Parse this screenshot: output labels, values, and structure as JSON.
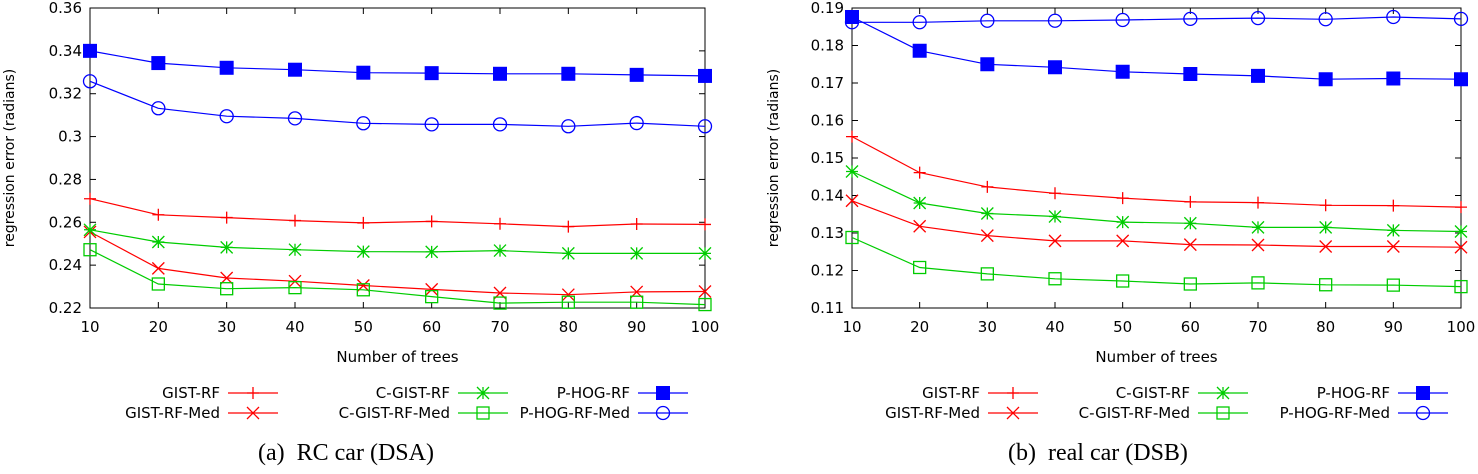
{
  "chart_data": [
    {
      "type": "line",
      "caption": "(a)  RC car (DSA)",
      "xlabel": "Number of trees",
      "ylabel": "regression error (radians)",
      "xlim": [
        10,
        100
      ],
      "ylim": [
        0.22,
        0.36
      ],
      "x": [
        10,
        20,
        30,
        40,
        50,
        60,
        70,
        80,
        90,
        100
      ],
      "xticks": [
        "10",
        "20",
        "30",
        "40",
        "50",
        "60",
        "70",
        "80",
        "90",
        "100"
      ],
      "yticks": [
        "0.22",
        "0.24",
        "0.26",
        "0.28",
        "0.3",
        "0.32",
        "0.34",
        "0.36"
      ],
      "ytick_values": [
        0.22,
        0.24,
        0.26,
        0.28,
        0.3,
        0.32,
        0.34,
        0.36
      ],
      "grid": false,
      "legend_position": "below",
      "series": [
        {
          "name": "GIST-RF",
          "color": "#ff0000",
          "marker": "plus",
          "values": [
            0.271,
            0.2635,
            0.2622,
            0.2608,
            0.2597,
            0.2604,
            0.2593,
            0.258,
            0.2592,
            0.259
          ]
        },
        {
          "name": "GIST-RF-Med",
          "color": "#ff0000",
          "marker": "x",
          "values": [
            0.2555,
            0.2385,
            0.234,
            0.2325,
            0.2305,
            0.2287,
            0.227,
            0.2262,
            0.2275,
            0.2277
          ]
        },
        {
          "name": "C-GIST-RF",
          "color": "#00cc00",
          "marker": "star",
          "values": [
            0.2565,
            0.2508,
            0.2483,
            0.2472,
            0.2463,
            0.2462,
            0.2468,
            0.2455,
            0.2455,
            0.2455
          ]
        },
        {
          "name": "C-GIST-RF-Med",
          "color": "#00cc00",
          "marker": "square-open",
          "values": [
            0.2472,
            0.2312,
            0.229,
            0.2295,
            0.2285,
            0.2253,
            0.2223,
            0.2227,
            0.2227,
            0.2216
          ]
        },
        {
          "name": "P-HOG-RF",
          "color": "#0000ff",
          "marker": "square-filled",
          "values": [
            0.34,
            0.3343,
            0.3321,
            0.3312,
            0.3298,
            0.3296,
            0.3293,
            0.3293,
            0.3288,
            0.3283
          ]
        },
        {
          "name": "P-HOG-RF-Med",
          "color": "#0000ff",
          "marker": "circle-open",
          "values": [
            0.3258,
            0.3132,
            0.3095,
            0.3085,
            0.3062,
            0.3057,
            0.3057,
            0.3048,
            0.3063,
            0.3048
          ]
        }
      ]
    },
    {
      "type": "line",
      "caption": "(b)  real car (DSB)",
      "xlabel": "Number of trees",
      "ylabel": "regression error (radians)",
      "xlim": [
        10,
        100
      ],
      "ylim": [
        0.11,
        0.19
      ],
      "x": [
        10,
        20,
        30,
        40,
        50,
        60,
        70,
        80,
        90,
        100
      ],
      "xticks": [
        "10",
        "20",
        "30",
        "40",
        "50",
        "60",
        "70",
        "80",
        "90",
        "100"
      ],
      "yticks": [
        "0.11",
        "0.12",
        "0.13",
        "0.14",
        "0.15",
        "0.16",
        "0.17",
        "0.18",
        "0.19"
      ],
      "ytick_values": [
        0.11,
        0.12,
        0.13,
        0.14,
        0.15,
        0.16,
        0.17,
        0.18,
        0.19
      ],
      "grid": false,
      "legend_position": "below",
      "series": [
        {
          "name": "GIST-RF",
          "color": "#ff0000",
          "marker": "plus",
          "values": [
            0.1557,
            0.1461,
            0.1423,
            0.1406,
            0.1393,
            0.1383,
            0.1381,
            0.1374,
            0.1373,
            0.1369
          ]
        },
        {
          "name": "GIST-RF-Med",
          "color": "#ff0000",
          "marker": "x",
          "values": [
            0.1386,
            0.1318,
            0.1293,
            0.1279,
            0.1279,
            0.1269,
            0.1268,
            0.1264,
            0.1264,
            0.1262
          ]
        },
        {
          "name": "C-GIST-RF",
          "color": "#00cc00",
          "marker": "star",
          "values": [
            0.1464,
            0.138,
            0.1352,
            0.1344,
            0.1329,
            0.1326,
            0.1315,
            0.1315,
            0.1307,
            0.1304
          ]
        },
        {
          "name": "C-GIST-RF-Med",
          "color": "#00cc00",
          "marker": "square-open",
          "values": [
            0.1288,
            0.1208,
            0.1191,
            0.1178,
            0.1172,
            0.1164,
            0.1167,
            0.1162,
            0.1161,
            0.1157
          ]
        },
        {
          "name": "P-HOG-RF",
          "color": "#0000ff",
          "marker": "square-filled",
          "values": [
            0.1876,
            0.1786,
            0.175,
            0.1742,
            0.173,
            0.1724,
            0.1719,
            0.171,
            0.1712,
            0.171
          ]
        },
        {
          "name": "P-HOG-RF-Med",
          "color": "#0000ff",
          "marker": "circle-open",
          "values": [
            0.1862,
            0.1862,
            0.1866,
            0.1866,
            0.1868,
            0.1871,
            0.1873,
            0.187,
            0.1876,
            0.1871
          ]
        }
      ]
    }
  ]
}
